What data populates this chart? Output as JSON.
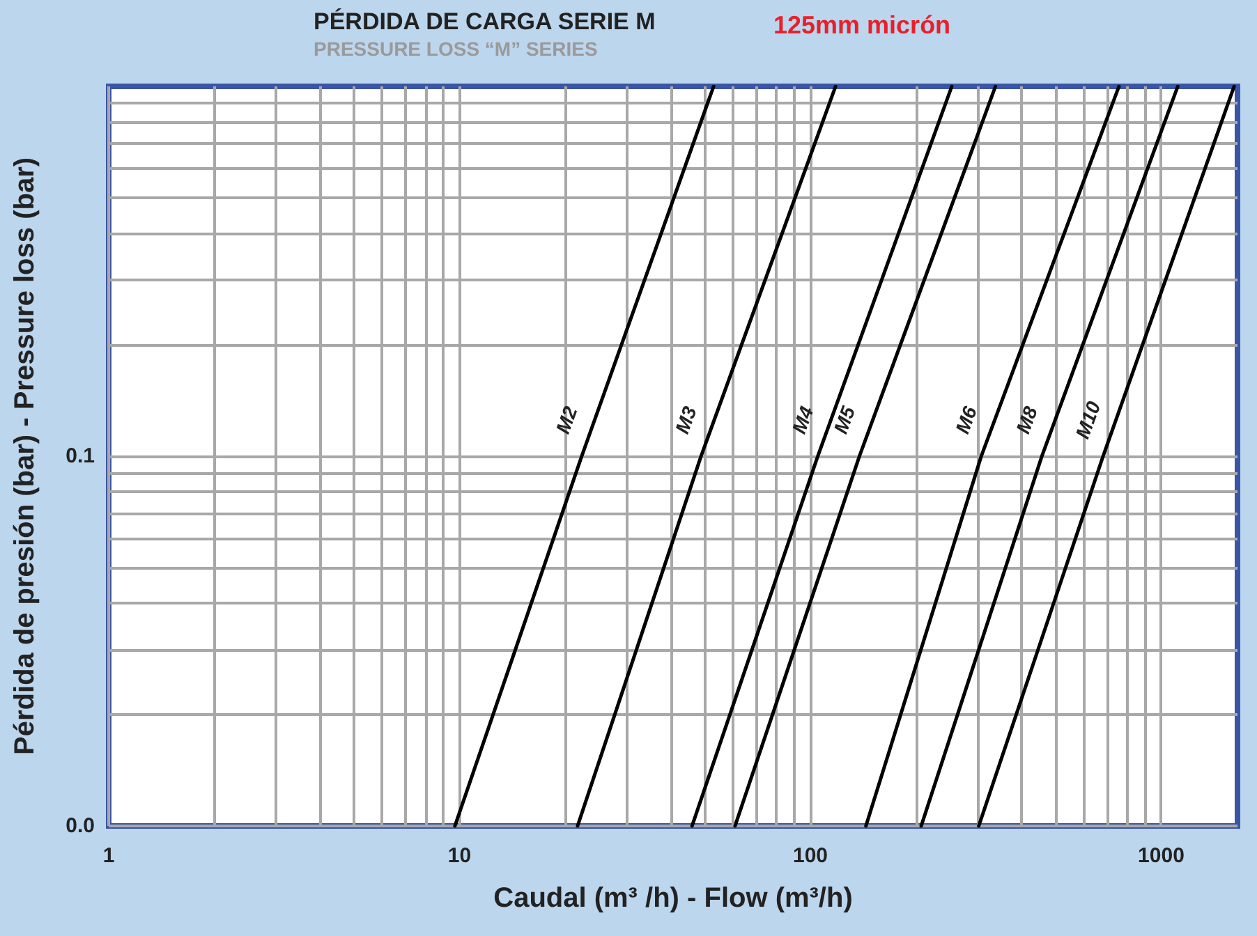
{
  "chart_data": {
    "type": "line",
    "title": "PÉRDIDA DE CARGA SERIE M",
    "subtitle": "PRESSURE LOSS “M” SERIES",
    "annotations": [
      "125mm micrón"
    ],
    "xlabel": "Caudal (m³ /h) - Flow (m³/h)",
    "ylabel": "Pérdida de presión (bar) - Pressure loss (bar)",
    "log": "xy",
    "xlim": [
      1,
      1650
    ],
    "ylim": [
      0.01,
      1
    ],
    "xticks": [
      1,
      10,
      100,
      1000
    ],
    "yticks": [
      {
        "value": 0.01,
        "label": "0.0"
      },
      0.1
    ],
    "grid": true,
    "legend": false,
    "marker": "none",
    "line_style": "solid",
    "series": [
      {
        "name": "M2",
        "color": "#000000",
        "x": [
          9.7,
          22.3,
          53
        ],
        "values": [
          0.01,
          0.1,
          1
        ]
      },
      {
        "name": "M3",
        "color": "#000000",
        "x": [
          21.7,
          48.8,
          118
        ],
        "values": [
          0.01,
          0.1,
          1
        ]
      },
      {
        "name": "M4",
        "color": "#000000",
        "x": [
          46,
          105,
          253
        ],
        "values": [
          0.01,
          0.1,
          1
        ]
      },
      {
        "name": "M5",
        "color": "#000000",
        "x": [
          61,
          138,
          337
        ],
        "values": [
          0.01,
          0.1,
          1
        ]
      },
      {
        "name": "M6",
        "color": "#000000",
        "x": [
          144,
          307,
          758
        ],
        "values": [
          0.01,
          0.1,
          1
        ]
      },
      {
        "name": "M8",
        "color": "#000000",
        "x": [
          207,
          457,
          1115
        ],
        "values": [
          0.01,
          0.1,
          1
        ]
      },
      {
        "name": "M10",
        "color": "#000000",
        "x": [
          302,
          683,
          1614
        ],
        "values": [
          0.01,
          0.1,
          1
        ]
      }
    ]
  }
}
